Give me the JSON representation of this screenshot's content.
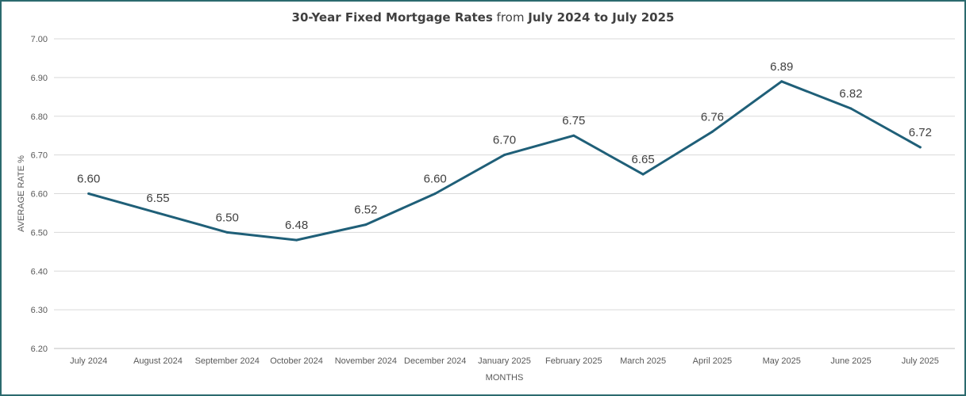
{
  "chart_data": {
    "type": "line",
    "title_parts": [
      {
        "text": "30-Year Fixed Mortgage Rates",
        "weight": "bold"
      },
      {
        "text": " from ",
        "weight": "normal"
      },
      {
        "text": "July 2024 to July 2025",
        "weight": "bold"
      }
    ],
    "xlabel": "MONTHS",
    "ylabel": "AVERAGE RATE %",
    "ylim": [
      6.2,
      7.0
    ],
    "yticks": [
      "6.20",
      "6.30",
      "6.40",
      "6.50",
      "6.60",
      "6.70",
      "6.80",
      "6.90",
      "7.00"
    ],
    "grid": true,
    "legend": false,
    "line_color": "#1f5f78",
    "categories": [
      "July 2024",
      "August 2024",
      "September 2024",
      "October 2024",
      "November 2024",
      "December 2024",
      "January 2025",
      "February 2025",
      "March 2025",
      "April 2025",
      "May 2025",
      "June 2025",
      "July 2025"
    ],
    "values": [
      6.6,
      6.55,
      6.5,
      6.48,
      6.52,
      6.6,
      6.7,
      6.75,
      6.65,
      6.76,
      6.89,
      6.82,
      6.72
    ],
    "data_labels": [
      "6.60",
      "6.55",
      "6.50",
      "6.48",
      "6.52",
      "6.60",
      "6.70",
      "6.75",
      "6.65",
      "6.76",
      "6.89",
      "6.82",
      "6.72"
    ]
  }
}
